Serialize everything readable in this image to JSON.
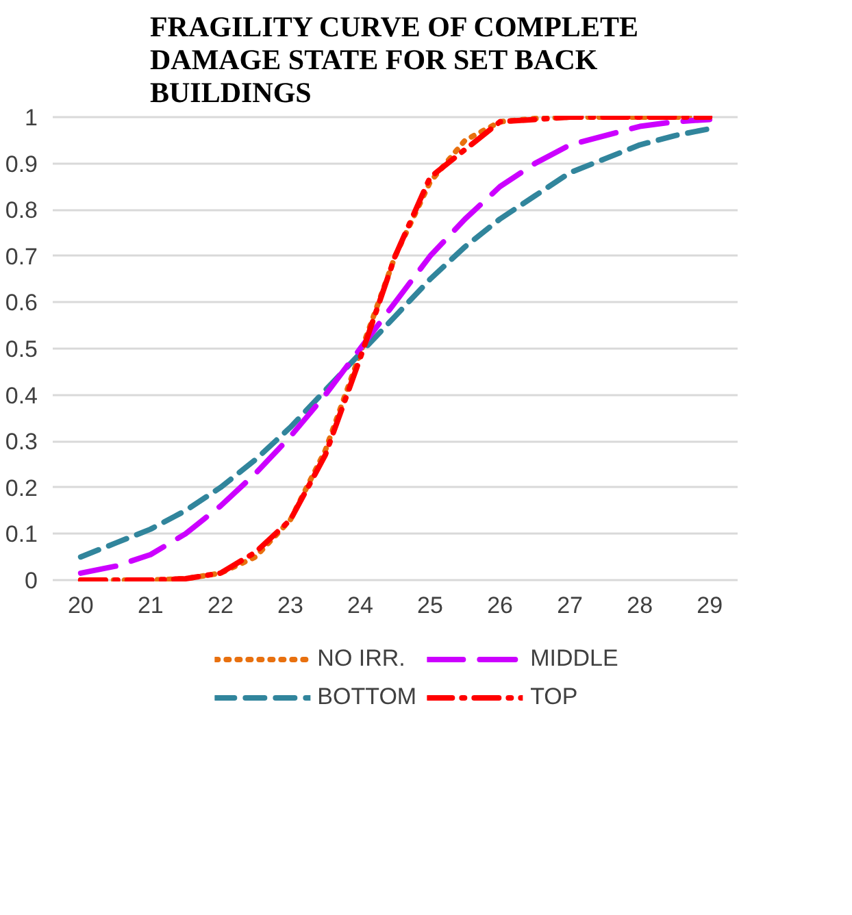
{
  "chart_data": {
    "type": "line",
    "title": "FRAGILITY CURVE OF COMPLETE DAMAGE STATE FOR SET BACK BUILDINGS",
    "x": [
      20,
      20.5,
      21,
      21.5,
      22,
      22.5,
      23,
      23.5,
      24,
      24.5,
      25,
      25.5,
      26,
      26.5,
      27,
      27.5,
      28,
      28.5,
      29
    ],
    "series": [
      {
        "name": "NO IRR.",
        "color": "#e8700f",
        "line_style": "dotted",
        "values": [
          0,
          0,
          0,
          0.003,
          0.015,
          0.05,
          0.13,
          0.28,
          0.49,
          0.7,
          0.86,
          0.95,
          0.99,
          0.997,
          1,
          1,
          1,
          1,
          1
        ]
      },
      {
        "name": "BOTTOM",
        "color": "#31859c",
        "line_style": "dashed",
        "values": [
          0.05,
          0.08,
          0.11,
          0.15,
          0.2,
          0.26,
          0.33,
          0.41,
          0.49,
          0.57,
          0.65,
          0.72,
          0.78,
          0.83,
          0.88,
          0.91,
          0.94,
          0.96,
          0.975
        ]
      },
      {
        "name": "MIDDLE",
        "color": "#cc00ff",
        "line_style": "longdash",
        "values": [
          0.015,
          0.03,
          0.055,
          0.1,
          0.16,
          0.23,
          0.31,
          0.4,
          0.5,
          0.6,
          0.7,
          0.78,
          0.85,
          0.9,
          0.94,
          0.96,
          0.98,
          0.99,
          0.995
        ]
      },
      {
        "name": "TOP",
        "color": "#ff0000",
        "line_style": "dashdot",
        "values": [
          0,
          0,
          0,
          0.003,
          0.015,
          0.06,
          0.13,
          0.27,
          0.48,
          0.7,
          0.87,
          0.93,
          0.99,
          0.995,
          1,
          1,
          1,
          1,
          1
        ]
      }
    ],
    "xlim": [
      19.6,
      29.4
    ],
    "xticks": [
      20,
      21,
      22,
      23,
      24,
      25,
      26,
      27,
      28,
      29
    ],
    "ylim": [
      0,
      1
    ],
    "yticks": [
      0,
      0.1,
      0.2,
      0.3,
      0.4,
      0.5,
      0.6,
      0.7,
      0.8,
      0.9,
      1
    ],
    "grid": "y",
    "legend": "bottom",
    "marker": "none"
  }
}
